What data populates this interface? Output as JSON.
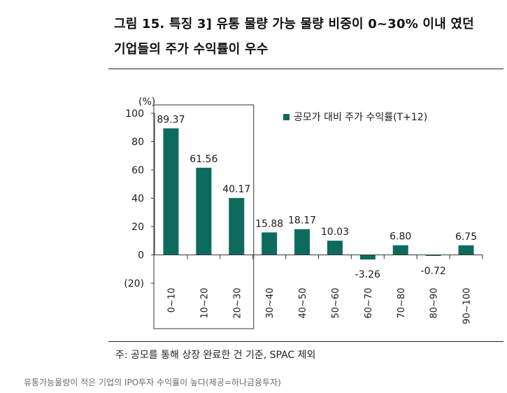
{
  "figure": {
    "title_line1": "그림 15. 특징 3] 유통 물량 가능 물량 비중이 0~30% 이내 였던",
    "title_line2": "기업들의 주가 수익률이 우수",
    "note": "주: 공모를 통해 상장 완료한 건 기준, SPAC 제외",
    "caption": "유통가능물량이 적은 기업의 IPO투자 수익률이 높다(제공=하나금융투자)"
  },
  "colors": {
    "bar": "#0d6b5e",
    "axis": "#333333",
    "text": "#1a1a1a",
    "highlight_box": "#555555"
  },
  "chart_data": {
    "type": "bar",
    "title": "",
    "xlabel": "",
    "ylabel": "",
    "unit_label": "(%)",
    "categories": [
      "0~10",
      "10~20",
      "20~30",
      "30~40",
      "40~50",
      "50~60",
      "60~70",
      "70~80",
      "80~90",
      "90~100"
    ],
    "series": [
      {
        "name": "공모가 대비 주가 수익률(T+12)",
        "values": [
          89.37,
          61.56,
          40.17,
          15.88,
          18.17,
          10.03,
          -3.26,
          6.8,
          -0.72,
          6.75
        ],
        "labels": [
          "89.37",
          "61.56",
          "40.17",
          "15.88",
          "18.17",
          "10.03",
          "-3.26",
          "6.80",
          "-0.72",
          "6.75"
        ]
      }
    ],
    "ylim": [
      -20,
      100
    ],
    "yticks": [
      100,
      80,
      60,
      40,
      20,
      0,
      -20
    ],
    "ytick_labels": [
      "100",
      "80",
      "60",
      "40",
      "20",
      "0",
      "(20)"
    ],
    "legend_position": "top-right",
    "grid": false,
    "highlight_categories": [
      "0~10",
      "10~20",
      "20~30"
    ]
  }
}
